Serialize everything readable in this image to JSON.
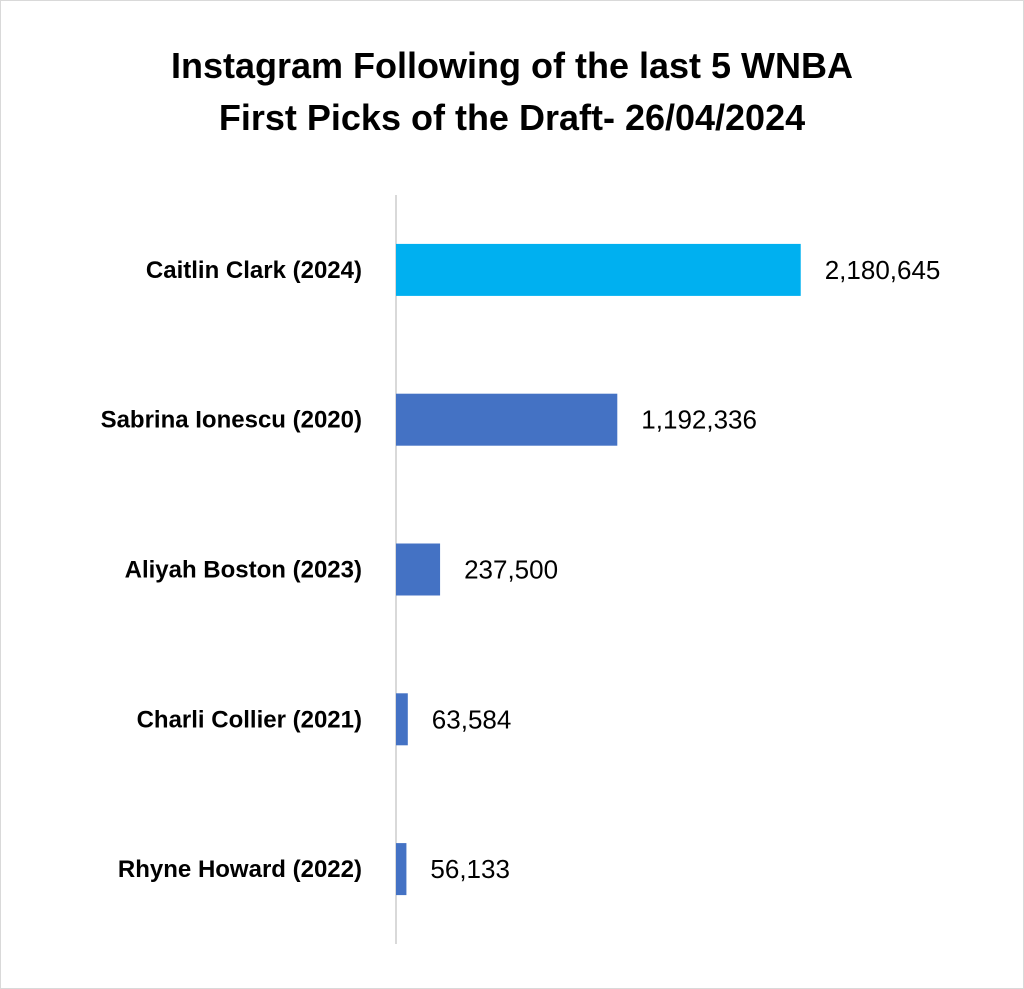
{
  "chart_data": {
    "type": "bar",
    "orientation": "horizontal",
    "title_lines": [
      "Instagram Following of the last 5 WNBA",
      "First Picks of the Draft- 26/04/2024"
    ],
    "categories": [
      "Caitlin Clark (2024)",
      "Sabrina Ionescu (2020)",
      "Aliyah Boston (2023)",
      "Charli Collier (2021)",
      "Rhyne Howard (2022)"
    ],
    "values": [
      2180645,
      1192336,
      237500,
      63584,
      56133
    ],
    "value_labels": [
      "2,180,645",
      "1,192,336",
      "237,500",
      "63,584",
      "56,133"
    ],
    "bar_colors": [
      "#00b0f0",
      "#4472c4",
      "#4472c4",
      "#4472c4",
      "#4472c4"
    ],
    "xlim": [
      0,
      2500000
    ],
    "grid": false,
    "legend": "none"
  }
}
